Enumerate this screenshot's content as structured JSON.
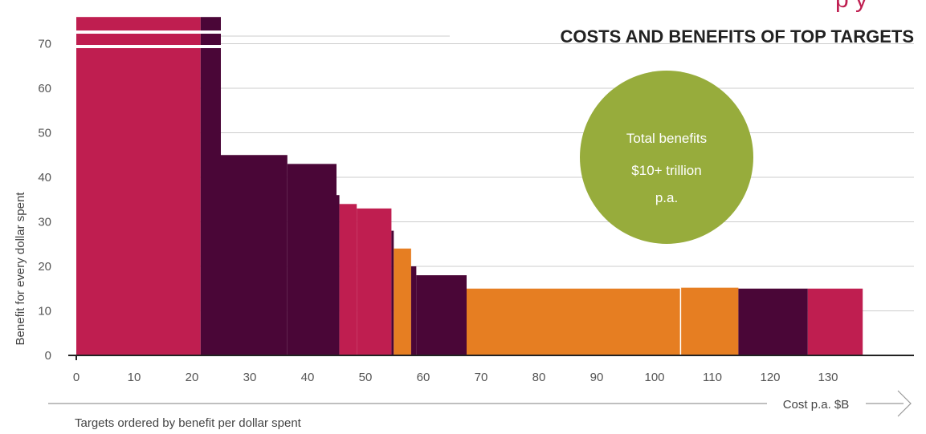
{
  "colors": {
    "magenta": "#BF1E50",
    "plum": "#4A0637",
    "orange": "#E67E22",
    "green": "#97AC3C",
    "grid": "#CCCCCC",
    "axis": "#222222"
  },
  "chart_data": {
    "type": "bar",
    "title": "COSTS AND BENEFITS OF TOP TARGETS",
    "ylabel": "Benefit for every dollar spent",
    "xlabel": "Cost p.a. $B",
    "xlim": [
      0,
      145
    ],
    "ylim": [
      0,
      76
    ],
    "x_ticks": [
      "0",
      "10",
      "20",
      "30",
      "40",
      "50",
      "60",
      "70",
      "80",
      "90",
      "100",
      "110",
      "120",
      "130"
    ],
    "y_ticks": [
      "0",
      "10",
      "20",
      "30",
      "40",
      "50",
      "60",
      "70"
    ],
    "grid": true,
    "y_axis_break": true,
    "bars": [
      {
        "x0": 0,
        "x1": 21.5,
        "value": 76,
        "color": "magenta",
        "truncated": true
      },
      {
        "x0": 21.5,
        "x1": 25,
        "value": 76,
        "color": "plum",
        "truncated": true
      },
      {
        "x0": 25,
        "x1": 36.5,
        "value": 45,
        "color": "plum"
      },
      {
        "x0": 36.5,
        "x1": 45,
        "value": 43,
        "color": "plum"
      },
      {
        "x0": 45,
        "x1": 45.5,
        "value": 36,
        "color": "plum"
      },
      {
        "x0": 45.5,
        "x1": 48.5,
        "value": 34,
        "color": "magenta"
      },
      {
        "x0": 48.5,
        "x1": 54.5,
        "value": 33,
        "color": "magenta"
      },
      {
        "x0": 54.5,
        "x1": 54.9,
        "value": 28,
        "color": "plum"
      },
      {
        "x0": 54.9,
        "x1": 57.9,
        "value": 24,
        "color": "orange"
      },
      {
        "x0": 57.9,
        "x1": 58.8,
        "value": 20,
        "color": "plum"
      },
      {
        "x0": 58.8,
        "x1": 67.5,
        "value": 18,
        "color": "plum"
      },
      {
        "x0": 67.5,
        "x1": 104.5,
        "value": 15,
        "color": "orange"
      },
      {
        "x0": 104.5,
        "x1": 114.5,
        "value": 15.2,
        "color": "orange"
      },
      {
        "x0": 114.5,
        "x1": 126.5,
        "value": 15,
        "color": "plum"
      },
      {
        "x0": 126.5,
        "x1": 136,
        "value": 15,
        "color": "magenta"
      }
    ]
  },
  "callout": {
    "lines": [
      "Total benefits",
      "$10+ trillion",
      "p.a."
    ]
  },
  "header_fragment": "p y",
  "footnote": "Targets ordered by benefit per dollar spent"
}
